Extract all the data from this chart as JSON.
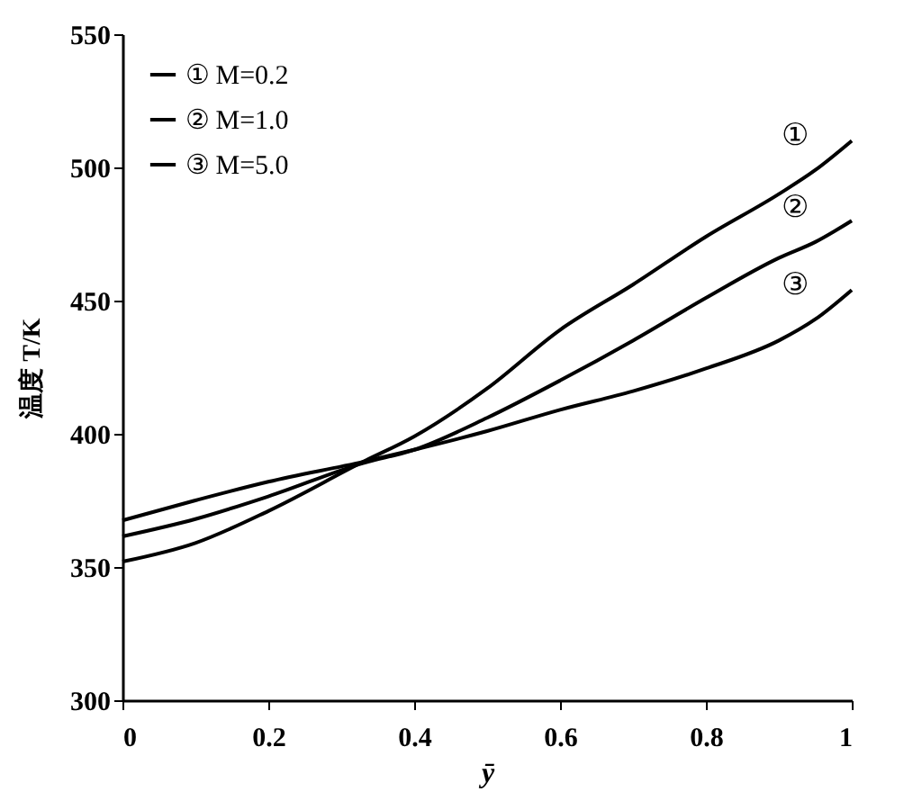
{
  "chart_data": {
    "type": "line",
    "xlabel": "ȳ",
    "ylabel": "温度 T/K",
    "x": [
      0,
      0.1,
      0.2,
      0.33,
      0.4,
      0.5,
      0.6,
      0.7,
      0.8,
      0.9,
      0.95,
      1.0
    ],
    "series": [
      {
        "name": "① M=0.2",
        "color": "#000000",
        "values": [
          352,
          359,
          371,
          389.5,
          399,
          417,
          439,
          456,
          474,
          490,
          499,
          510
        ]
      },
      {
        "name": "② M=1.0",
        "color": "#000000",
        "values": [
          361.5,
          368,
          376.5,
          389,
          394,
          406,
          420,
          435,
          451,
          466,
          472,
          480
        ]
      },
      {
        "name": "③ M=5.0",
        "color": "#000000",
        "values": [
          367.5,
          375,
          382,
          389.5,
          394,
          401,
          409,
          416,
          424.5,
          435,
          443,
          454
        ]
      }
    ],
    "xlim": [
      0,
      1
    ],
    "xticks": [
      0,
      0.2,
      0.4,
      0.6,
      0.8,
      1
    ],
    "ylim": [
      300,
      550
    ],
    "yticks": [
      300,
      350,
      400,
      450,
      500,
      550
    ],
    "annotations": [
      "①",
      "②",
      "③"
    ],
    "grid": false,
    "legend": "top left"
  }
}
